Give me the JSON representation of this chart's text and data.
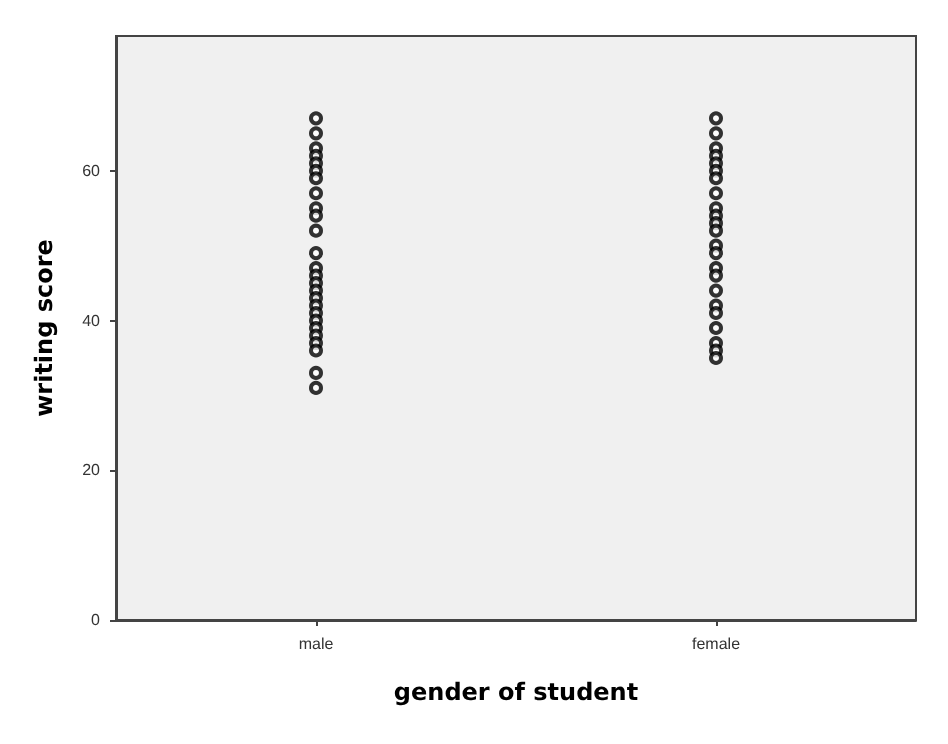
{
  "chart_data": {
    "type": "scatter",
    "xlabel": "gender of student",
    "ylabel": "writing score",
    "categories": [
      "male",
      "female"
    ],
    "ylim": [
      0,
      78
    ],
    "yticks": [
      0,
      20,
      40,
      60
    ],
    "grid": false,
    "marker": "circle",
    "series": [
      {
        "color": "#000000",
        "x": [
          "male",
          "male",
          "male",
          "male",
          "male",
          "male",
          "male",
          "male",
          "male",
          "male",
          "male",
          "male",
          "male",
          "male",
          "male",
          "male",
          "male",
          "male",
          "male",
          "male",
          "male",
          "male",
          "male",
          "male",
          "male",
          "male",
          "female",
          "female",
          "female",
          "female",
          "female",
          "female",
          "female",
          "female",
          "female",
          "female",
          "female",
          "female",
          "female",
          "female",
          "female",
          "female",
          "female",
          "female",
          "female",
          "female",
          "female",
          "female",
          "female"
        ],
        "values": [
          67,
          65,
          63,
          62,
          61,
          60,
          59,
          57,
          55,
          54,
          52,
          49,
          47,
          46,
          45,
          44,
          43,
          42,
          41,
          40,
          39,
          38,
          37,
          36,
          33,
          31,
          67,
          65,
          63,
          62,
          61,
          60,
          59,
          57,
          55,
          54,
          53,
          52,
          50,
          49,
          47,
          46,
          44,
          42,
          41,
          39,
          37,
          36,
          35
        ]
      }
    ]
  }
}
